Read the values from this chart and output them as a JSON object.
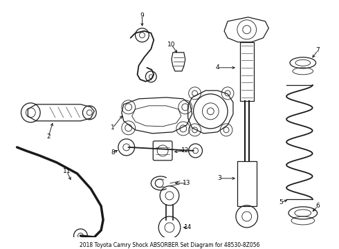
{
  "title": "2018 Toyota Camry Shock ABSORBER Set Diagram for 48530-8Z056",
  "background_color": "#ffffff",
  "line_color": "#1a1a1a",
  "text_color": "#000000",
  "figsize": [
    4.9,
    3.6
  ],
  "dpi": 100
}
